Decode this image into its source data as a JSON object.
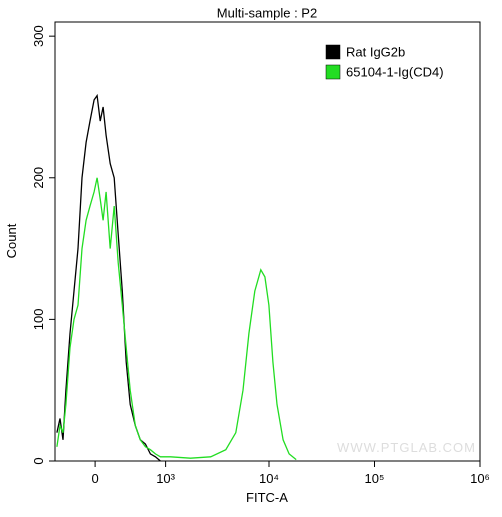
{
  "chart_data": {
    "type": "line",
    "title": "Multi-sample : P2",
    "x_label": "FITC-A",
    "y_label": "Count",
    "watermark": "WWW.PTGLAB.COM",
    "xscale": "biexponential",
    "xlim": [
      -446,
      1000000
    ],
    "ylim": [
      0,
      310
    ],
    "xticks": [
      0,
      {
        "value": 1000,
        "label": "10³"
      },
      {
        "value": 10000,
        "label": "10⁴"
      },
      {
        "value": 100000,
        "label": "10⁵"
      },
      {
        "value": 1000000,
        "label": "10⁶"
      }
    ],
    "yticks": [
      0,
      100,
      200,
      300
    ],
    "legend": "upper right",
    "series": [
      {
        "name": "Rat IgG2b",
        "color": "#000000",
        "x": [
          -420,
          -380,
          -342,
          -306,
          -259,
          -215,
          -172,
          -130,
          -89,
          -50,
          -10,
          20,
          50,
          79,
          109,
          151,
          193,
          237,
          283,
          330,
          380,
          447,
          520,
          599,
          684,
          778,
          882
        ],
        "values": [
          20,
          30,
          15,
          50,
          90,
          120,
          150,
          200,
          225,
          240,
          255,
          258,
          240,
          250,
          230,
          210,
          200,
          160,
          120,
          70,
          40,
          25,
          15,
          12,
          5,
          3,
          0
        ]
      },
      {
        "name": "65104-1-Ig(CD4)",
        "color": "#22dd22",
        "x": [
          -420,
          -380,
          -342,
          -306,
          -259,
          -215,
          -172,
          -130,
          -89,
          -50,
          -10,
          20,
          50,
          79,
          109,
          151,
          193,
          237,
          283,
          330,
          380,
          447,
          520,
          599,
          684,
          778,
          882,
          1122,
          1778,
          2786,
          3884,
          4837,
          5670,
          6440,
          7340,
          8370,
          9140,
          9990,
          10890,
          11920,
          13600,
          15500,
          18100
        ],
        "values": [
          10,
          25,
          20,
          40,
          80,
          100,
          110,
          150,
          170,
          180,
          190,
          200,
          185,
          170,
          190,
          150,
          180,
          140,
          110,
          80,
          50,
          25,
          15,
          10,
          8,
          5,
          3,
          3,
          2,
          3,
          8,
          20,
          50,
          90,
          120,
          135,
          130,
          110,
          70,
          40,
          15,
          5,
          1
        ]
      }
    ]
  }
}
